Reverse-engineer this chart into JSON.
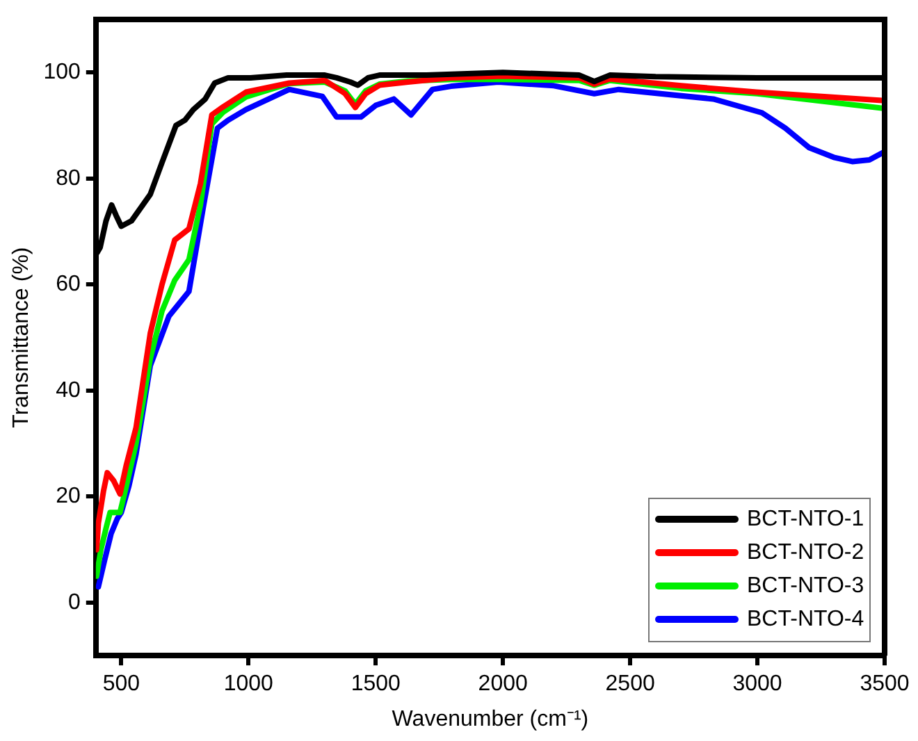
{
  "chart_data": {
    "type": "line",
    "xlabel": "Wavenumber (cm⁻¹)",
    "ylabel": "Transmittance (%)",
    "xlim": [
      400,
      3500
    ],
    "ylim": [
      -10,
      110
    ],
    "xticks": [
      500,
      1000,
      1500,
      2000,
      2500,
      3000,
      3500
    ],
    "yticks": [
      0,
      20,
      40,
      60,
      80,
      100
    ],
    "grid": false,
    "legend": "bottom right",
    "marker": "none",
    "line_style": "solid",
    "series": [
      {
        "name": "BCT-NTO-1",
        "color": "#000000",
        "x": [
          405,
          417,
          440,
          462,
          480,
          500,
          540,
          614,
          660,
          715,
          750,
          783,
          830,
          867,
          920,
          1008,
          1150,
          1300,
          1346,
          1400,
          1430,
          1470,
          1515,
          1700,
          2000,
          2300,
          2359,
          2420,
          2600,
          3000,
          3500
        ],
        "values": [
          66,
          67,
          72,
          75,
          73,
          71,
          72,
          77,
          83,
          90,
          91,
          93,
          95,
          98,
          99,
          99,
          99.5,
          99.5,
          99,
          98.2,
          97.6,
          99,
          99.5,
          99.5,
          100,
          99.5,
          98.3,
          99.5,
          99.2,
          99,
          99
        ]
      },
      {
        "name": "BCT-NTO-2",
        "color": "#ff0000",
        "x": [
          403,
          410,
          430,
          445,
          470,
          495,
          520,
          558,
          614,
          660,
          710,
          766,
          811,
          856,
          900,
          990,
          1160,
          1300,
          1380,
          1420,
          1460,
          1515,
          1627,
          1800,
          2000,
          2300,
          2359,
          2420,
          2700,
          2996,
          3500
        ],
        "values": [
          10,
          15,
          21,
          24.5,
          23,
          20.5,
          26,
          33,
          50.8,
          60,
          68.4,
          70.5,
          79,
          92,
          93.5,
          96.3,
          98,
          98.5,
          96,
          93.4,
          96,
          97.6,
          98.2,
          99,
          99.3,
          99,
          97.8,
          98.8,
          97.5,
          96.3,
          94.7
        ]
      },
      {
        "name": "BCT-NTO-3",
        "color": "#00ee00",
        "x": [
          403,
          420,
          440,
          456,
          480,
          495,
          520,
          558,
          614,
          660,
          710,
          766,
          811,
          856,
          900,
          990,
          1160,
          1300,
          1380,
          1420,
          1460,
          1515,
          1627,
          1800,
          2000,
          2300,
          2359,
          2420,
          2700,
          3000,
          3500
        ],
        "values": [
          5,
          10,
          14,
          17,
          17,
          17,
          22,
          30,
          46,
          55,
          60.8,
          64.7,
          75,
          90.3,
          92.5,
          95.4,
          97.9,
          98.2,
          96.5,
          94,
          96.5,
          97.8,
          98.4,
          98.7,
          98.7,
          98.5,
          97.6,
          98.5,
          97,
          96,
          93.2
        ]
      },
      {
        "name": "BCT-NTO-4",
        "color": "#0000ff",
        "x": [
          410,
          434,
          460,
          484,
          500,
          530,
          558,
          614,
          687,
          766,
          822,
          878,
          920,
          990,
          1160,
          1290,
          1346,
          1442,
          1500,
          1571,
          1639,
          1723,
          1796,
          1982,
          2200,
          2359,
          2455,
          2827,
          3018,
          3110,
          3204,
          3300,
          3373,
          3440,
          3497
        ],
        "values": [
          3,
          7.9,
          13,
          15.8,
          17,
          22,
          28,
          44.7,
          54,
          58.7,
          74.5,
          89.5,
          91,
          93,
          96.8,
          95.5,
          91.6,
          91.6,
          93.8,
          95,
          92,
          96.8,
          97.4,
          98.2,
          97.5,
          96,
          96.8,
          95,
          92.4,
          89.5,
          85.8,
          84,
          83.2,
          83.5,
          85
        ]
      }
    ]
  }
}
